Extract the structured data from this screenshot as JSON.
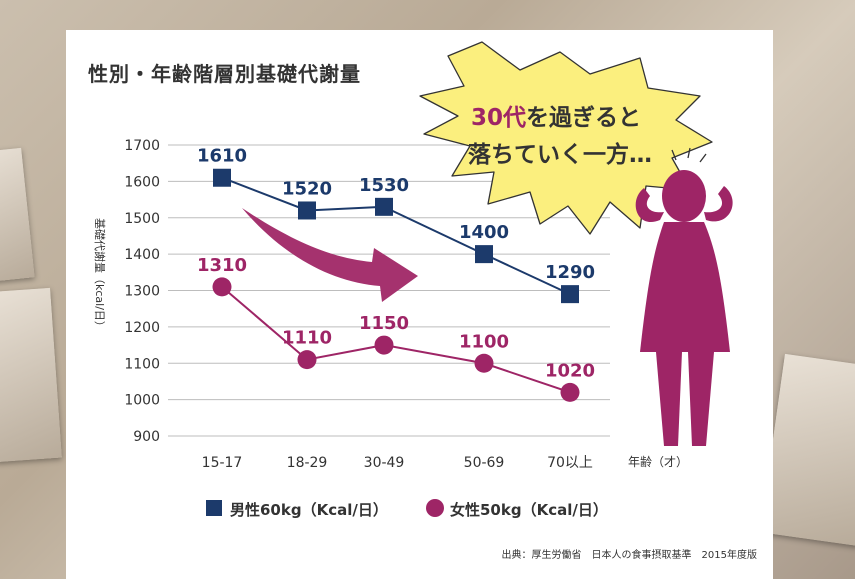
{
  "title": "性別・年齢階層別基礎代謝量",
  "callout": {
    "line1_num": "30代",
    "line1_rest": "を過ぎると",
    "line2": "落ちていく一方…"
  },
  "source": "出典：厚生労働省　日本人の食事摂取基準　2015年度版",
  "colors": {
    "male": "#1c3a6b",
    "female": "#9e2566",
    "bubble": "#fbef7e"
  },
  "chart_data": {
    "type": "line",
    "title": "性別・年齢階層別基礎代謝量",
    "categories": [
      "15-17",
      "18-29",
      "30-49",
      "50-69",
      "70以上"
    ],
    "xlabel": "年齢（才）",
    "ylabel": "基礎代謝量（kcal/日）",
    "ylim": [
      900,
      1700
    ],
    "yticks": [
      "1700",
      "1600",
      "1500",
      "1400",
      "1300",
      "1200",
      "1100",
      "1000",
      "900"
    ],
    "grid": true,
    "legend_position": "bottom",
    "series": [
      {
        "name": "男性60kg（Kcal/日）",
        "marker": "square",
        "values": [
          1610,
          1520,
          1530,
          1400,
          1290
        ]
      },
      {
        "name": "女性50kg（Kcal/日）",
        "marker": "circle",
        "values": [
          1310,
          1110,
          1150,
          1100,
          1020
        ]
      }
    ]
  }
}
